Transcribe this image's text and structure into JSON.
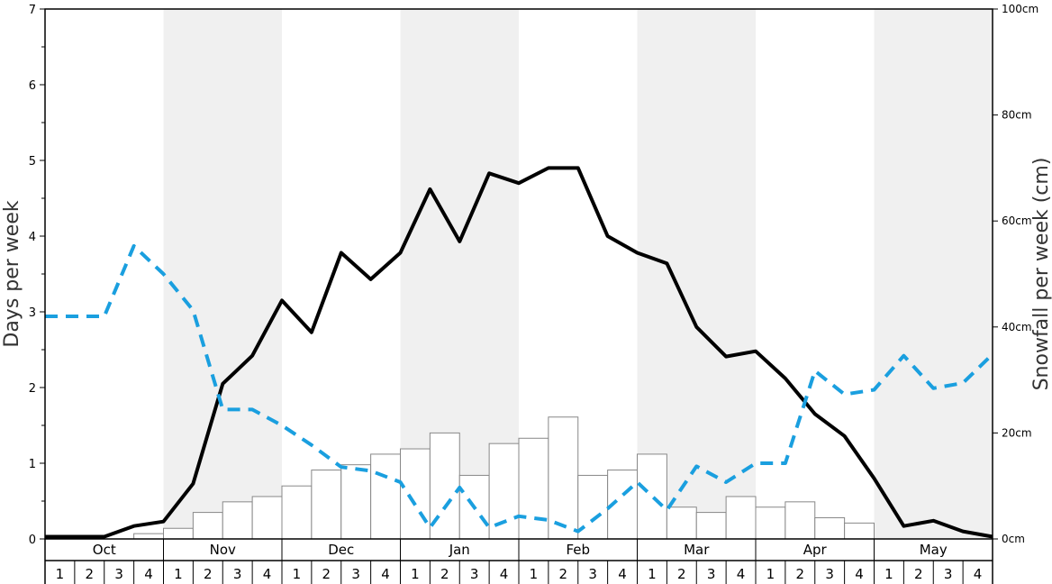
{
  "chart_data": {
    "type": "bar",
    "ylabel": "Days per week",
    "y2label": "Snowfall per week (cm)",
    "ylim": [
      0,
      7
    ],
    "y2lim": [
      0,
      100
    ],
    "yticks": [
      "0",
      "1",
      "2",
      "3",
      "4",
      "5",
      "6",
      "7"
    ],
    "y2ticks": [
      "0cm",
      "20cm",
      "40cm",
      "60cm",
      "80cm",
      "100cm"
    ],
    "months": [
      "Oct",
      "Nov",
      "Dec",
      "Jan",
      "Feb",
      "Mar",
      "Apr",
      "May"
    ],
    "weeks": [
      "1",
      "2",
      "3",
      "4"
    ],
    "shaded_months": [
      "Nov",
      "Jan",
      "Mar",
      "May"
    ],
    "colors": {
      "bar_fill": "#ffffff",
      "bar_stroke": "#888888",
      "solid_line": "#000000",
      "dashed_line": "#1a9fdf",
      "shade": "#f0f0f0"
    },
    "series": [
      {
        "kind": "bars",
        "axis": "right",
        "style": "white bars",
        "values": [
          0,
          0,
          0,
          1,
          2,
          5,
          7,
          8,
          10,
          13,
          14,
          16,
          17,
          20,
          12,
          18,
          19,
          23,
          12,
          13,
          16,
          6,
          5,
          8,
          6,
          7,
          4,
          3,
          0,
          0,
          0,
          0
        ]
      },
      {
        "kind": "line",
        "axis": "left",
        "style": "solid black",
        "values": [
          0.03,
          0.03,
          0.03,
          0.17,
          0.23,
          0.73,
          2.05,
          2.42,
          3.15,
          2.73,
          3.78,
          3.43,
          3.78,
          4.62,
          3.93,
          4.83,
          4.7,
          4.9,
          4.9,
          4.0,
          3.78,
          3.64,
          2.8,
          2.41,
          2.48,
          2.12,
          1.65,
          1.36,
          0.8,
          0.17,
          0.24,
          0.1
        ]
      },
      {
        "kind": "line",
        "axis": "left",
        "style": "dashed blue",
        "values": [
          2.94,
          2.94,
          2.94,
          3.87,
          3.5,
          3.02,
          1.71,
          1.71,
          1.5,
          1.24,
          0.95,
          0.9,
          0.75,
          0.15,
          0.68,
          0.15,
          0.3,
          0.25,
          0.1,
          0.4,
          0.75,
          0.38,
          0.96,
          0.75,
          1.0,
          1.0,
          2.22,
          1.91,
          1.97,
          2.42,
          1.99,
          2.06
        ]
      }
    ],
    "extra_points": {
      "solid_line_end": 0.03,
      "dashed_line_end": 2.44
    }
  }
}
